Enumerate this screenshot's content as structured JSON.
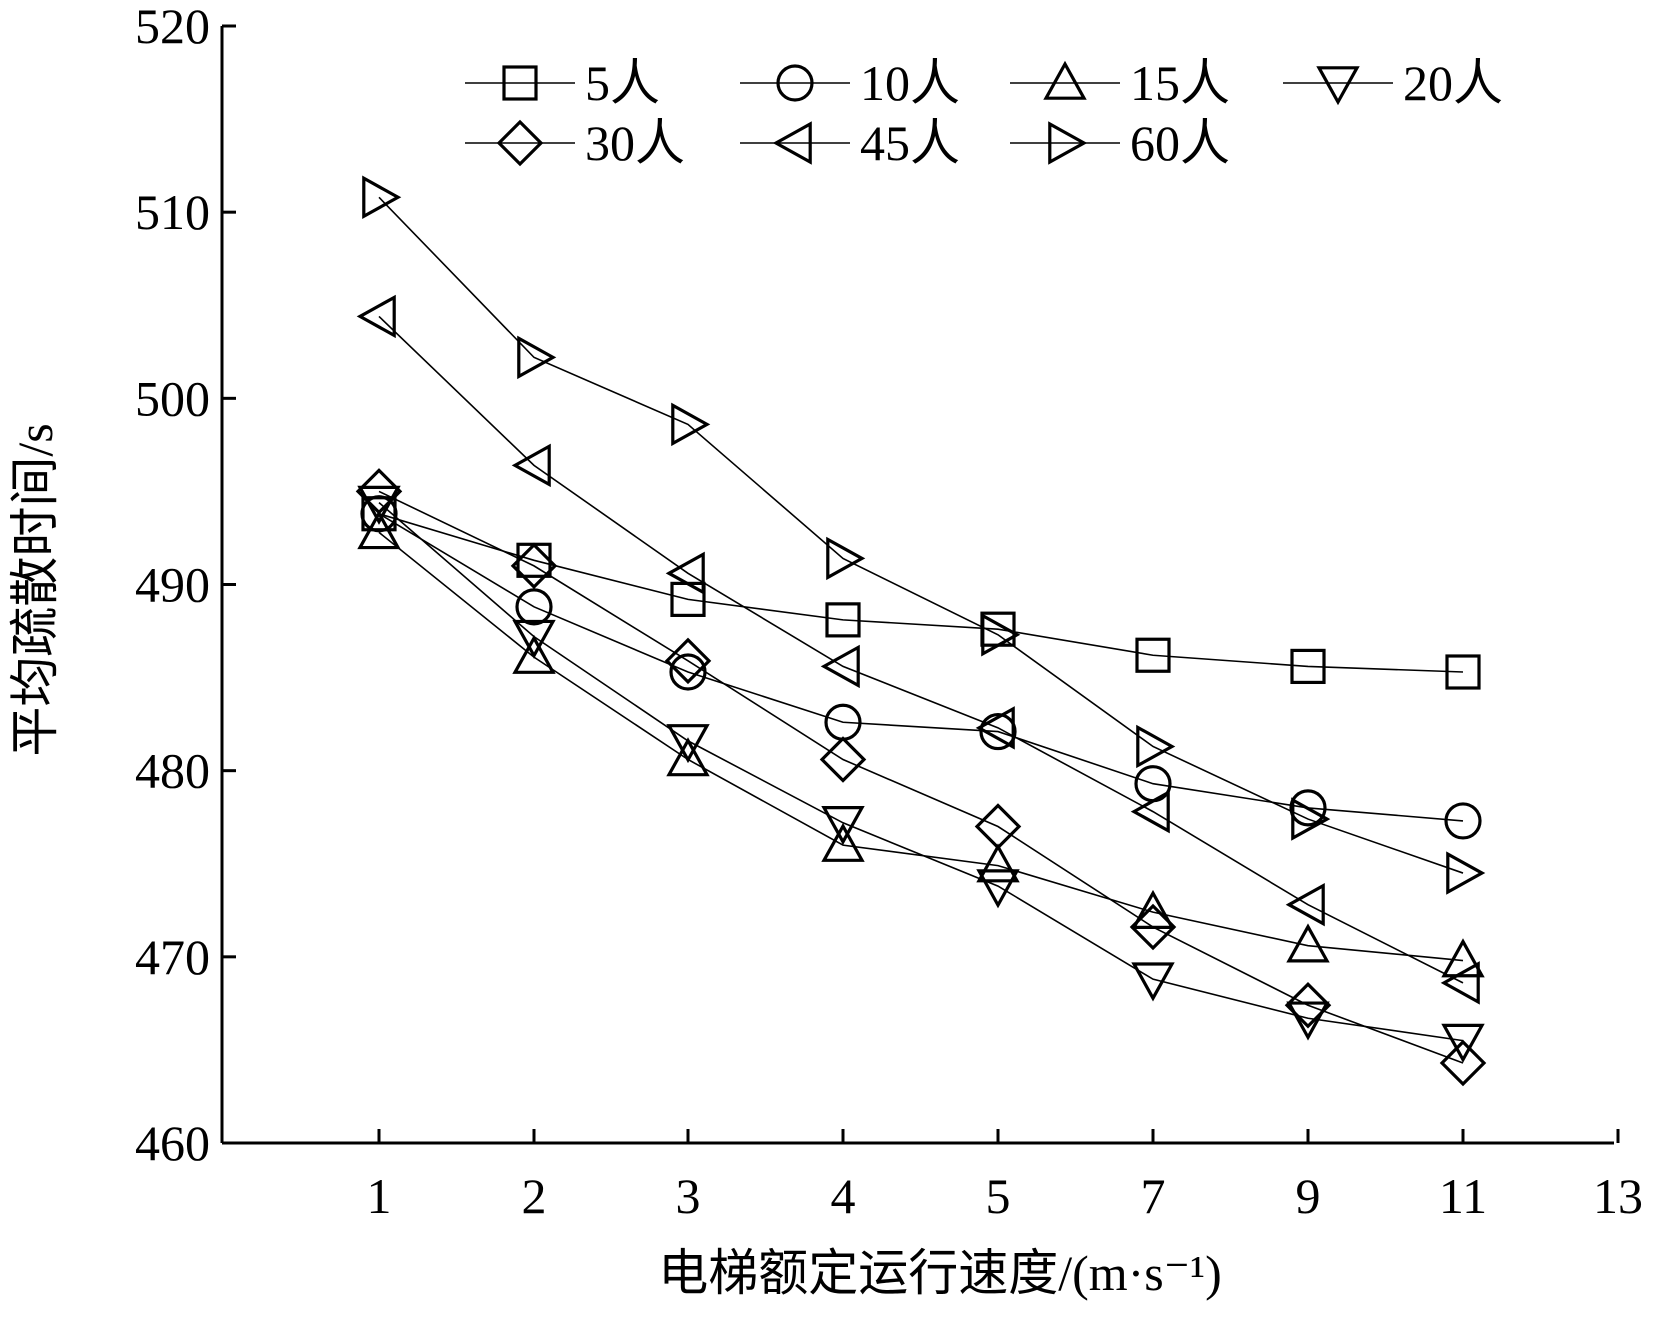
{
  "chart_data": {
    "type": "line",
    "title": "",
    "xlabel": "电梯额定运行速度/(m·s⁻¹)",
    "ylabel": "平均疏散时间/s",
    "x_tick_labels": [
      "1",
      "2",
      "3",
      "4",
      "5",
      "7",
      "9",
      "11",
      "13"
    ],
    "categories": [
      "1",
      "2",
      "3",
      "4",
      "5",
      "7",
      "9",
      "11"
    ],
    "ylim": [
      460,
      520
    ],
    "y_ticks": [
      460,
      470,
      480,
      490,
      500,
      510,
      520
    ],
    "grid": false,
    "legend_position": "top-right",
    "series": [
      {
        "name": "5人",
        "marker": "square",
        "values": [
          493.8,
          491.3,
          489.2,
          488.1,
          487.6,
          486.2,
          485.6,
          485.3
        ]
      },
      {
        "name": "10人",
        "marker": "circle",
        "values": [
          493.8,
          488.8,
          485.3,
          482.6,
          482.1,
          479.3,
          478.0,
          477.3
        ]
      },
      {
        "name": "15人",
        "marker": "triangle-up",
        "values": [
          492.8,
          486.1,
          480.6,
          476.0,
          474.9,
          472.4,
          470.6,
          469.8
        ]
      },
      {
        "name": "20人",
        "marker": "triangle-down",
        "values": [
          494.4,
          487.2,
          481.6,
          477.2,
          473.8,
          468.8,
          466.7,
          465.5
        ]
      },
      {
        "name": "30人",
        "marker": "diamond",
        "values": [
          495.0,
          491.0,
          485.9,
          480.6,
          477.0,
          471.6,
          467.4,
          464.3
        ]
      },
      {
        "name": "45人",
        "marker": "triangle-left",
        "values": [
          504.4,
          496.4,
          490.6,
          485.6,
          482.3,
          477.8,
          472.8,
          468.6
        ]
      },
      {
        "name": "60人",
        "marker": "triangle-right",
        "values": [
          510.8,
          502.2,
          498.6,
          491.4,
          487.3,
          481.3,
          477.4,
          474.5
        ]
      }
    ]
  }
}
